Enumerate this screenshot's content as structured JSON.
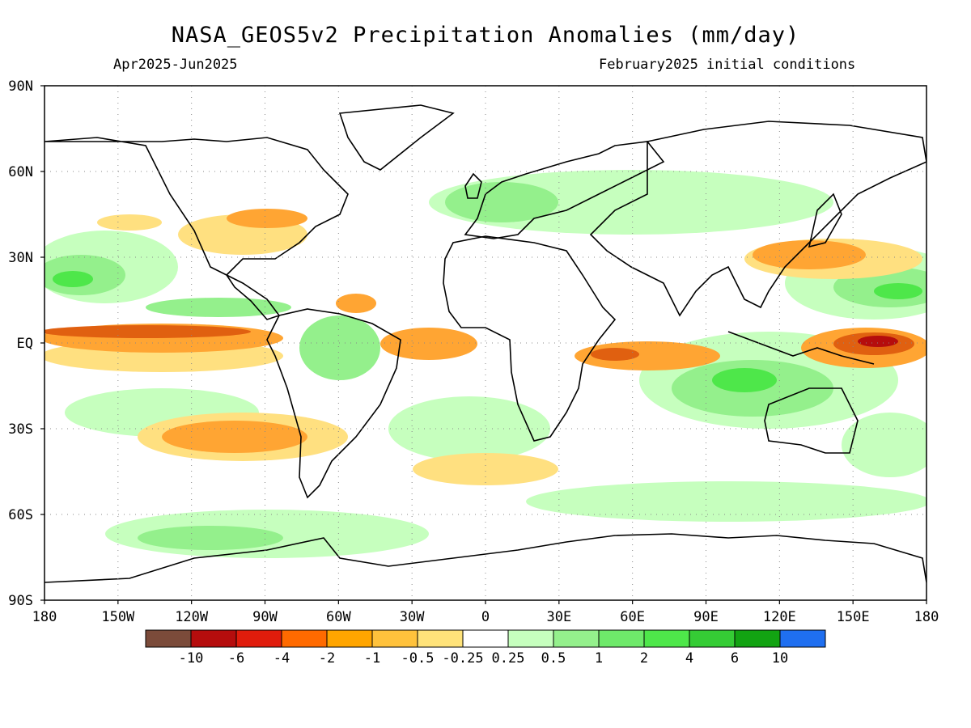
{
  "header": {
    "title": "NASA_GEOS5v2 Precipitation Anomalies (mm/day)",
    "period": "Apr2025-Jun2025",
    "initial_conditions": "February2025 initial conditions"
  },
  "map": {
    "lat_labels": [
      "90N",
      "60N",
      "30N",
      "EQ",
      "30S",
      "60S",
      "90S"
    ],
    "lon_labels": [
      "180",
      "150W",
      "120W",
      "90W",
      "60W",
      "30W",
      "0",
      "30E",
      "60E",
      "90E",
      "120E",
      "150E",
      "180"
    ]
  },
  "colorbar": {
    "colors": [
      "#7b4b3a",
      "#b50d0d",
      "#e01c0c",
      "#ff6a00",
      "#ffa500",
      "#ffc23c",
      "#ffe37a",
      "#ffffff",
      "#c6ffbe",
      "#94f08c",
      "#6ee96a",
      "#4ee74a",
      "#35cc35",
      "#12a312",
      "#1f6ff0"
    ],
    "labels": [
      "-10",
      "-6",
      "-4",
      "-2",
      "-1",
      "-0.5",
      "-0.25",
      "0.25",
      "0.5",
      "1",
      "2",
      "4",
      "6",
      "10"
    ]
  },
  "colors": {
    "dry_dark": "#e06010",
    "dry_mid": "#ffa533",
    "dry_light": "#ffe080",
    "wet_light": "#c6ffbe",
    "wet_mid": "#94f08c",
    "wet_strong": "#4ee74a"
  }
}
